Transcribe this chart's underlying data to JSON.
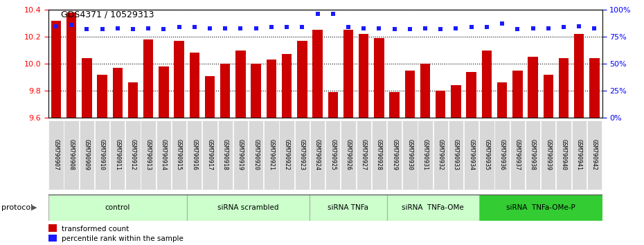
{
  "title": "GDS4371 / 10529313",
  "samples": [
    "GSM790907",
    "GSM790908",
    "GSM790909",
    "GSM790910",
    "GSM790911",
    "GSM790912",
    "GSM790913",
    "GSM790914",
    "GSM790915",
    "GSM790916",
    "GSM790917",
    "GSM790918",
    "GSM790919",
    "GSM790920",
    "GSM790921",
    "GSM790922",
    "GSM790923",
    "GSM790924",
    "GSM790925",
    "GSM790926",
    "GSM790927",
    "GSM790928",
    "GSM790929",
    "GSM790930",
    "GSM790931",
    "GSM790932",
    "GSM790933",
    "GSM790934",
    "GSM790935",
    "GSM790936",
    "GSM790937",
    "GSM790938",
    "GSM790939",
    "GSM790940",
    "GSM790941",
    "GSM790942"
  ],
  "transformed_count": [
    10.32,
    10.38,
    10.04,
    9.92,
    9.97,
    9.86,
    10.18,
    9.98,
    10.17,
    10.08,
    9.91,
    10.0,
    10.1,
    10.0,
    10.03,
    10.07,
    10.17,
    10.25,
    9.79,
    10.25,
    10.22,
    10.19,
    9.79,
    9.95,
    10.0,
    9.8,
    9.84,
    9.94,
    10.1,
    9.86,
    9.95,
    10.05,
    9.92,
    10.04,
    10.22,
    10.04
  ],
  "percentile_rank": [
    85,
    86,
    82,
    82,
    83,
    82,
    83,
    82,
    84,
    84,
    83,
    83,
    83,
    83,
    84,
    84,
    84,
    96,
    96,
    84,
    83,
    83,
    82,
    82,
    83,
    82,
    83,
    84,
    84,
    87,
    82,
    83,
    83,
    84,
    85,
    83
  ],
  "bar_color": "#cc0000",
  "dot_color": "#1a1aff",
  "ymin": 9.6,
  "ymax": 10.4,
  "y2min": 0,
  "y2max": 100,
  "yticks": [
    9.6,
    9.8,
    10.0,
    10.2,
    10.4
  ],
  "y2ticks": [
    0,
    25,
    50,
    75,
    100
  ],
  "protocol_groups": [
    {
      "label": "control",
      "start": 0,
      "end": 9,
      "color": "#ccffcc"
    },
    {
      "label": "siRNA scrambled",
      "start": 9,
      "end": 17,
      "color": "#ccffcc"
    },
    {
      "label": "siRNA TNFa",
      "start": 17,
      "end": 22,
      "color": "#ccffcc"
    },
    {
      "label": "siRNA  TNFa-OMe",
      "start": 22,
      "end": 28,
      "color": "#ccffcc"
    },
    {
      "label": "siRNA  TNFa-OMe-P",
      "start": 28,
      "end": 36,
      "color": "#33cc33"
    }
  ],
  "legend_items": [
    {
      "label": "transformed count",
      "color": "#cc0000"
    },
    {
      "label": "percentile rank within the sample",
      "color": "#1a1aff"
    }
  ],
  "bg_color": "#ffffff",
  "grid_color": "#000000",
  "tick_label_bg": "#d8d8d8"
}
